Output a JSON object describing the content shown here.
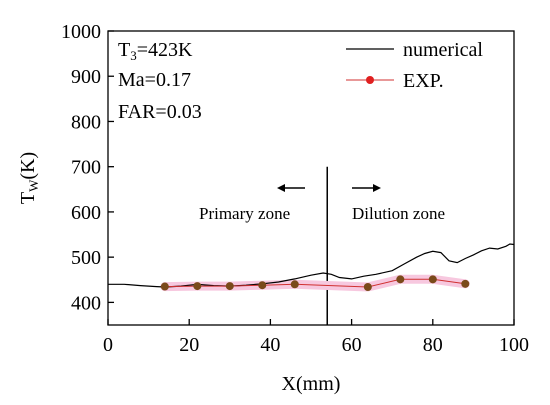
{
  "chart_data": {
    "type": "line",
    "xlabel": "X(mm)",
    "ylabel": {
      "main": "T",
      "sub": "W",
      "unit": "(K)"
    },
    "xlim": [
      0,
      100
    ],
    "ylim": [
      350,
      1000
    ],
    "x_ticks": [
      0,
      20,
      40,
      60,
      80,
      100
    ],
    "y_ticks": [
      400,
      500,
      600,
      700,
      800,
      900,
      1000
    ],
    "grid": false,
    "annotations": {
      "t3": {
        "main": "T",
        "sub": "3",
        "rest": "=423K"
      },
      "ma": "Ma=0.17",
      "far": "FAR=0.03",
      "primary": "Primary zone",
      "dilution": "Dilution zone",
      "divider_x": 54
    },
    "legend": {
      "placement": "top-right",
      "entries": [
        "numerical",
        "EXP."
      ]
    },
    "series": [
      {
        "name": "numerical",
        "style": "line",
        "color": "#000000",
        "x": [
          0,
          4,
          8,
          12,
          14,
          18,
          22,
          26,
          30,
          34,
          38,
          42,
          46,
          50,
          53,
          55,
          57,
          60,
          63,
          66,
          70,
          73,
          76,
          78,
          80,
          82,
          84,
          86,
          88,
          90,
          92,
          94,
          96,
          98,
          99,
          100
        ],
        "y": [
          440,
          440,
          437,
          435,
          434,
          436,
          440,
          437,
          436,
          438,
          441,
          445,
          452,
          460,
          465,
          462,
          455,
          452,
          458,
          462,
          470,
          485,
          500,
          508,
          513,
          510,
          492,
          488,
          497,
          505,
          514,
          520,
          518,
          524,
          529,
          528
        ]
      },
      {
        "name": "EXP.",
        "style": "line-marker",
        "color": "#d03030",
        "marker_color": "#7a4a1a",
        "x": [
          14,
          22,
          30,
          38,
          46,
          64,
          72,
          80,
          88
        ],
        "y": [
          435,
          436,
          436,
          438,
          440,
          434,
          451,
          451,
          441
        ]
      }
    ]
  }
}
